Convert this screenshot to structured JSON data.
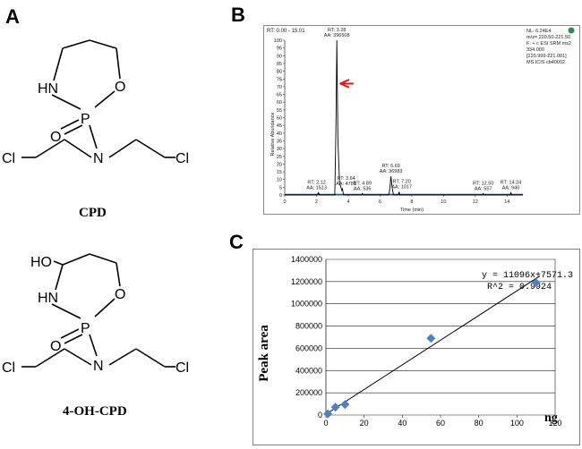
{
  "panels": {
    "a": "A",
    "b": "B",
    "c": "C"
  },
  "molecules": {
    "cpd": {
      "name": "CPD",
      "atoms": {
        "hn": "HN",
        "o": "O",
        "p": "P",
        "o2": "O",
        "n": "N",
        "cl1": "Cl",
        "cl2": "Cl"
      }
    },
    "ohcpd": {
      "name": "4-OH-CPD",
      "atoms": {
        "ho": "HO",
        "hn": "HN",
        "o": "O",
        "p": "P",
        "o2": "O",
        "n": "N",
        "cl1": "Cl",
        "cl2": "Cl"
      }
    }
  },
  "chromatogram": {
    "header": "RT: 0.00 - 15.01",
    "info_lines": [
      "NL: 6.24E4",
      "m/z= 220.50-221.50",
      "F: + c ESI SRM ms2",
      "334.000",
      "[220.999-221.001]",
      "MS ICIS cb40002"
    ],
    "ylabel": "Relative Abundance",
    "xlabel": "Time (min)",
    "peaks": [
      {
        "rt_label": "RT: 2.12",
        "aa_label": "AA: 1513"
      },
      {
        "rt_label": "RT: 3.28",
        "aa_label": "AA: 396508"
      },
      {
        "rt_label": "RT: 3.64",
        "aa_label": "AA: 4781"
      },
      {
        "rt_label": "RT: 4.89",
        "aa_label": "AA: 536"
      },
      {
        "rt_label": "RT: 6.69",
        "aa_label": "AA: 36983"
      },
      {
        "rt_label": "RT: 7.20",
        "aa_label": "AA: 1017"
      },
      {
        "rt_label": "RT: 12.50",
        "aa_label": "AA: 557"
      },
      {
        "rt_label": "RT: 14.24",
        "aa_label": "AA: 940"
      }
    ],
    "arrow_color": "#e8141c",
    "trace_color": "#000000",
    "baseline_color": "#1f3fbf"
  },
  "chart_data": [
    {
      "type": "line",
      "title": "",
      "xlabel": "Time (min)",
      "ylabel": "Relative Abundance",
      "xlim": [
        0,
        15
      ],
      "ylim": [
        0,
        100
      ],
      "x_ticks": [
        0,
        2,
        4,
        6,
        8,
        10,
        12,
        14
      ],
      "y_ticks": [
        0,
        5,
        10,
        15,
        20,
        25,
        30,
        35,
        40,
        45,
        50,
        55,
        60,
        65,
        70,
        75,
        80,
        85,
        90,
        95,
        100
      ],
      "series": [
        {
          "x": [
            0,
            2.05,
            2.12,
            2.2,
            3.15,
            3.22,
            3.28,
            3.35,
            3.45,
            3.6,
            3.64,
            3.7,
            4.85,
            4.89,
            4.95,
            6.55,
            6.62,
            6.69,
            6.76,
            6.85,
            7.15,
            7.2,
            7.25,
            12.45,
            12.5,
            12.55,
            14.2,
            14.24,
            14.3,
            15
          ],
          "y": [
            0,
            0,
            1.5,
            0,
            0,
            40,
            100,
            35,
            8,
            3,
            4,
            0,
            0,
            1,
            0,
            0,
            4,
            12,
            5,
            0,
            0,
            2,
            0,
            0,
            1,
            0,
            0,
            1.5,
            0,
            0
          ]
        }
      ]
    },
    {
      "type": "scatter",
      "title": "",
      "xlabel": "ng",
      "ylabel": "Peak area",
      "xlim": [
        0,
        120
      ],
      "ylim": [
        0,
        1400000
      ],
      "x_ticks": [
        0,
        20,
        40,
        60,
        80,
        100,
        120
      ],
      "y_ticks": [
        0,
        200000,
        400000,
        600000,
        800000,
        1000000,
        1200000,
        1400000
      ],
      "series": [
        {
          "x": [
            1,
            5,
            10,
            55,
            110
          ],
          "y": [
            10000,
            70000,
            95000,
            690000,
            1190000
          ]
        }
      ],
      "fit": {
        "slope": 11096,
        "intercept": 7571.3
      },
      "equation": "y = 11096x+7571.3",
      "r2_label": "R^2 = 0.9924",
      "marker_color": "#4f81bd"
    }
  ]
}
